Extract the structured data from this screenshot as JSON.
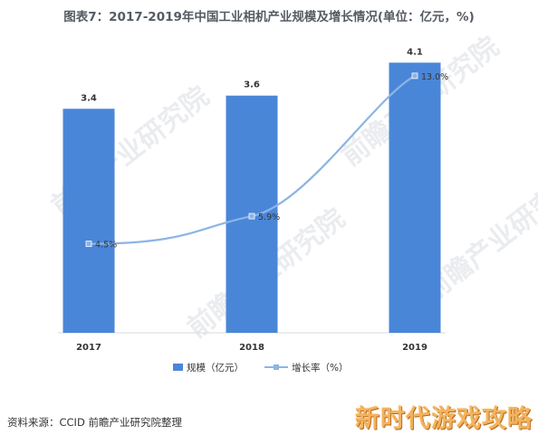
{
  "chart_data": {
    "type": "bar",
    "title": "图表7：2017-2019年中国工业相机产业规模及增长情况(单位：亿元，%)",
    "categories": [
      "2017",
      "2018",
      "2019"
    ],
    "series": [
      {
        "name": "规模（亿元）",
        "type": "bar",
        "values": [
          3.4,
          3.6,
          4.1
        ],
        "labels": [
          "3.4",
          "3.6",
          "4.1"
        ],
        "color": "#4a86d8"
      },
      {
        "name": "增长率（%）",
        "type": "line",
        "values": [
          4.5,
          5.9,
          13.0
        ],
        "labels": [
          "4.5%",
          "5.9%",
          "13.0%"
        ],
        "color": "#8db4e6"
      }
    ],
    "ylim_bar": [
      0,
      4.2
    ],
    "ylim_line": [
      0,
      14.0
    ],
    "legend_position": "bottom-center",
    "grid": false
  },
  "source": "资料来源：CCID 前瞻产业研究院整理",
  "watermarks": {
    "center": "前瞻产业研究院",
    "corner": "新时代游戏攻略"
  }
}
